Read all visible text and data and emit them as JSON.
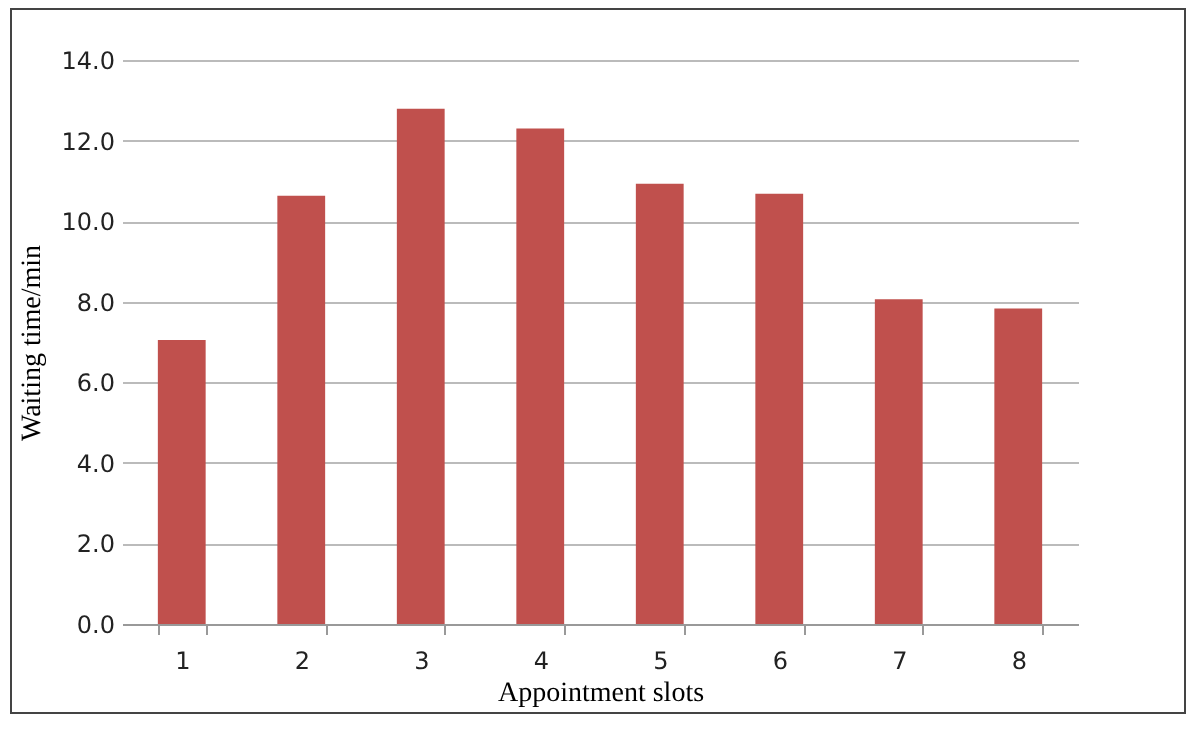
{
  "chart_data": {
    "type": "bar",
    "xlabel": "Appointment  slots",
    "ylabel": "Waiting  time/min",
    "categories": [
      "1",
      "2",
      "3",
      "4",
      "5",
      "6",
      "7",
      "8"
    ],
    "values": [
      7.05,
      10.63,
      12.79,
      12.3,
      10.93,
      10.68,
      8.06,
      7.83
    ],
    "color": "#c0504d",
    "ylim": [
      0,
      14
    ],
    "yticks": [
      {
        "value": 0,
        "label": "0.0"
      },
      {
        "value": 2,
        "label": "2.0"
      },
      {
        "value": 4,
        "label": "4.0"
      },
      {
        "value": 6,
        "label": "6.0"
      },
      {
        "value": 8,
        "label": "8.0"
      },
      {
        "value": 10,
        "label": "10.0"
      },
      {
        "value": 12,
        "label": "12.0"
      },
      {
        "value": 14,
        "label": "14.0"
      }
    ],
    "grid": "y"
  }
}
